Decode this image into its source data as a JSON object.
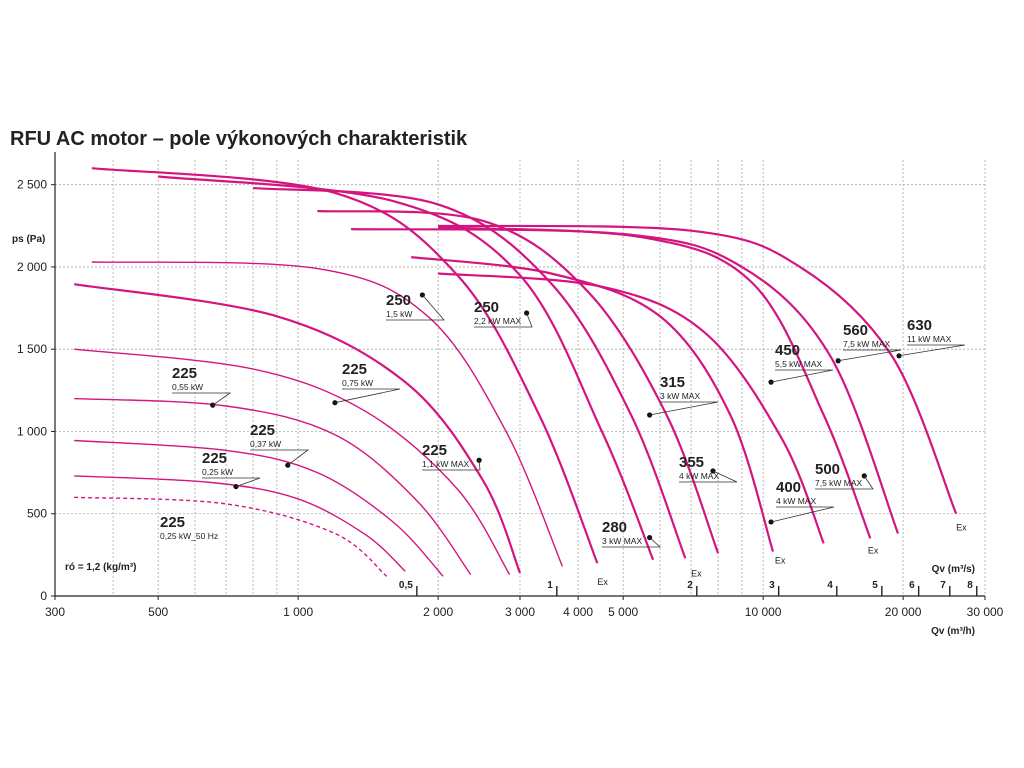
{
  "title": "RFU AC motor – pole výkonových charakteristik",
  "colors": {
    "curve": "#d4157f",
    "grid": "#aaaaaa",
    "axis": "#222222",
    "text": "#222222"
  },
  "chart_data": {
    "type": "line",
    "title": "RFU AC motor – pole výkonových charakteristik",
    "ylabel": "ps (Pa)",
    "xlabel": "Qv (m³/h)",
    "xlabel2": "Qv (m³/s)",
    "x_scale": "log",
    "xlim": [
      300,
      30000
    ],
    "ylim": [
      0,
      2650
    ],
    "grid": true,
    "x_ticks": [
      {
        "v": 300,
        "label": "300"
      },
      {
        "v": 500,
        "label": "500"
      },
      {
        "v": 1000,
        "label": "1 000"
      },
      {
        "v": 2000,
        "label": "2 000"
      },
      {
        "v": 3000,
        "label": "3 000"
      },
      {
        "v": 4000,
        "label": "4 000"
      },
      {
        "v": 5000,
        "label": "5 000"
      },
      {
        "v": 10000,
        "label": "10 000"
      },
      {
        "v": 20000,
        "label": "20 000"
      },
      {
        "v": 30000,
        "label": "30 000"
      }
    ],
    "y_ticks": [
      {
        "v": 0,
        "label": "0"
      },
      {
        "v": 500,
        "label": "500"
      },
      {
        "v": 1000,
        "label": "1 000"
      },
      {
        "v": 1500,
        "label": "1 500"
      },
      {
        "v": 2000,
        "label": "2 000"
      },
      {
        "v": 2500,
        "label": "2 500"
      }
    ],
    "secondary_ticks": [
      {
        "v": 1800,
        "label": "0,5"
      },
      {
        "v": 3600,
        "label": "1"
      },
      {
        "v": 7200,
        "label": "2"
      },
      {
        "v": 10800,
        "label": "3"
      },
      {
        "v": 14400,
        "label": "4"
      },
      {
        "v": 18000,
        "label": "5"
      },
      {
        "v": 21600,
        "label": "6"
      },
      {
        "v": 25200,
        "label": "7"
      },
      {
        "v": 28800,
        "label": "8"
      }
    ],
    "density_note": "ró = 1,2 (kg/m³)",
    "series": [
      {
        "size": "225",
        "power": "0,25 kW_50 Hz",
        "dashed": true,
        "x": [
          330,
          700,
          1200,
          1550
        ],
        "y": [
          600,
          560,
          380,
          120
        ],
        "marker": null,
        "label_pos": [
          160,
          527
        ]
      },
      {
        "size": "225",
        "power": "0,25 kW",
        "x": [
          330,
          650,
          1000,
          1400,
          1700
        ],
        "y": [
          730,
          690,
          590,
          370,
          150
        ],
        "marker": [
          735,
          665
        ],
        "label_pos": [
          202,
          463
        ]
      },
      {
        "size": "225",
        "power": "0,37 kW",
        "x": [
          330,
          700,
          1100,
          1600,
          2050
        ],
        "y": [
          945,
          885,
          750,
          450,
          120
        ],
        "marker": [
          950,
          795
        ],
        "label_pos": [
          250,
          435
        ]
      },
      {
        "size": "225",
        "power": "0,55 kW",
        "x": [
          330,
          700,
          1200,
          1800,
          2350
        ],
        "y": [
          1200,
          1155,
          980,
          580,
          130
        ],
        "marker": [
          655,
          1160
        ],
        "label_pos": [
          172,
          378
        ]
      },
      {
        "size": "225",
        "power": "0,75 kW",
        "x": [
          330,
          800,
          1400,
          2200,
          2850
        ],
        "y": [
          1500,
          1380,
          1120,
          650,
          130
        ],
        "marker": [
          1200,
          1175
        ],
        "label_pos": [
          342,
          374
        ]
      },
      {
        "size": "225",
        "power": "1,1 kW MAX",
        "x": [
          330,
          900,
          1700,
          2500,
          3000
        ],
        "y": [
          1895,
          1700,
          1300,
          700,
          140
        ],
        "marker": [
          2450,
          825
        ],
        "label_pos": [
          422,
          455
        ]
      },
      {
        "size": "250",
        "power": "1,5 kW",
        "x": [
          360,
          1100,
          1900,
          2800,
          3700
        ],
        "y": [
          2030,
          1990,
          1700,
          1000,
          180
        ],
        "marker": [
          1850,
          1830
        ],
        "label_pos": [
          386,
          305
        ]
      },
      {
        "size": "250",
        "power": "2,2 kW MAX",
        "x": [
          360,
          1200,
          2200,
          3300,
          4400
        ],
        "y": [
          2600,
          2450,
          1950,
          1100,
          200
        ],
        "marker": [
          3100,
          1720
        ],
        "label_pos": [
          474,
          312
        ]
      },
      {
        "size": "280",
        "power": "3 kW MAX",
        "x": [
          500,
          1600,
          3000,
          4500,
          5800
        ],
        "y": [
          2550,
          2400,
          1950,
          1000,
          220
        ],
        "marker": [
          5700,
          355
        ],
        "label_pos": [
          602,
          532
        ],
        "ex": [
          4400,
          140
        ]
      },
      {
        "size": "315",
        "power": "3 kW MAX",
        "x": [
          800,
          2000,
          3500,
          5200,
          6800
        ],
        "y": [
          2480,
          2380,
          1900,
          1100,
          230
        ],
        "marker": [
          5700,
          1100
        ],
        "label_pos": [
          660,
          387
        ]
      },
      {
        "size": "355",
        "power": "4 kW MAX",
        "x": [
          1100,
          2500,
          4200,
          6200,
          8000
        ],
        "y": [
          2340,
          2280,
          1850,
          1100,
          260
        ],
        "marker": [
          7800,
          760
        ],
        "label_pos": [
          679,
          467
        ],
        "ex": [
          7000,
          190
        ]
      },
      {
        "size": "400",
        "power": "4 kW MAX",
        "x": [
          1750,
          3500,
          6000,
          8500,
          10500
        ],
        "y": [
          2060,
          1960,
          1700,
          1100,
          270
        ],
        "marker": [
          10400,
          450
        ],
        "label_pos": [
          776,
          492
        ],
        "ex": [
          10600,
          270
        ]
      },
      {
        "size": "450",
        "power": "5,5 kW MAX",
        "x": [
          2000,
          4500,
          7500,
          11000,
          13500
        ],
        "y": [
          1960,
          1880,
          1600,
          950,
          320
        ],
        "marker": [
          10400,
          1300
        ],
        "label_pos": [
          775,
          355
        ]
      },
      {
        "size": "500",
        "power": "7,5 kW MAX",
        "x": [
          2000,
          5500,
          9500,
          13500,
          17000
        ],
        "y": [
          2240,
          2180,
          1900,
          1100,
          350
        ],
        "marker": [
          16500,
          730
        ],
        "label_pos": [
          815,
          474
        ],
        "ex": [
          16800,
          330
        ]
      },
      {
        "size": "560",
        "power": "7,5 kW MAX",
        "x": [
          1300,
          5000,
          9000,
          14000,
          19500
        ],
        "y": [
          2230,
          2200,
          2000,
          1450,
          380
        ],
        "marker": [
          14500,
          1430
        ],
        "label_pos": [
          843,
          335
        ]
      },
      {
        "size": "630",
        "power": "11 kW MAX",
        "x": [
          2000,
          7000,
          12000,
          19000,
          26000
        ],
        "y": [
          2250,
          2220,
          2000,
          1450,
          500
        ],
        "marker": [
          19600,
          1460
        ],
        "label_pos": [
          907,
          330
        ],
        "ex": [
          26000,
          470
        ]
      }
    ],
    "ex_label": "Ex"
  }
}
